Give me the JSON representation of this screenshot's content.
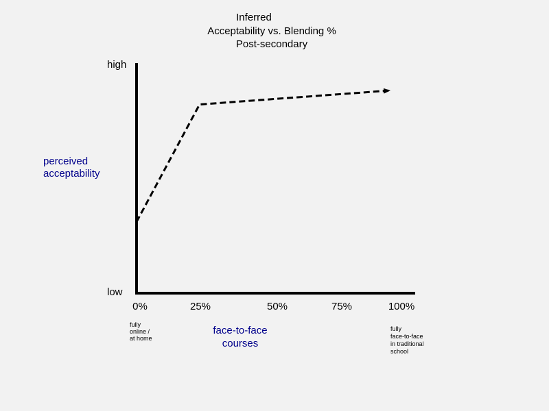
{
  "chart_data": {
    "type": "line",
    "title_lines": [
      "Inferred",
      "Acceptability vs. Blending %",
      "Post-secondary"
    ],
    "xlabel_lines": [
      "face-to-face",
      "courses"
    ],
    "ylabel_lines": [
      "perceived",
      "acceptability"
    ],
    "y_ticks": [
      "high",
      "low"
    ],
    "x_ticks": [
      "0%",
      "25%",
      "50%",
      "75%",
      "100%"
    ],
    "x_tick_values": [
      0,
      25,
      50,
      75,
      100
    ],
    "xlim": [
      0,
      100
    ],
    "ylim": [
      0,
      1
    ],
    "x_start_note": [
      "fully",
      "online /",
      "at home"
    ],
    "x_end_note": [
      "fully",
      "face-to-face",
      "in traditional",
      "school"
    ],
    "series": [
      {
        "x": [
          0,
          25,
          100
        ],
        "y": [
          0.31,
          0.82,
          0.88
        ],
        "style": "dashed",
        "arrow": true
      }
    ],
    "grid": false,
    "colors": {
      "axis_label": "#00008b",
      "line": "#000000",
      "background": "#f2f2f2"
    }
  }
}
